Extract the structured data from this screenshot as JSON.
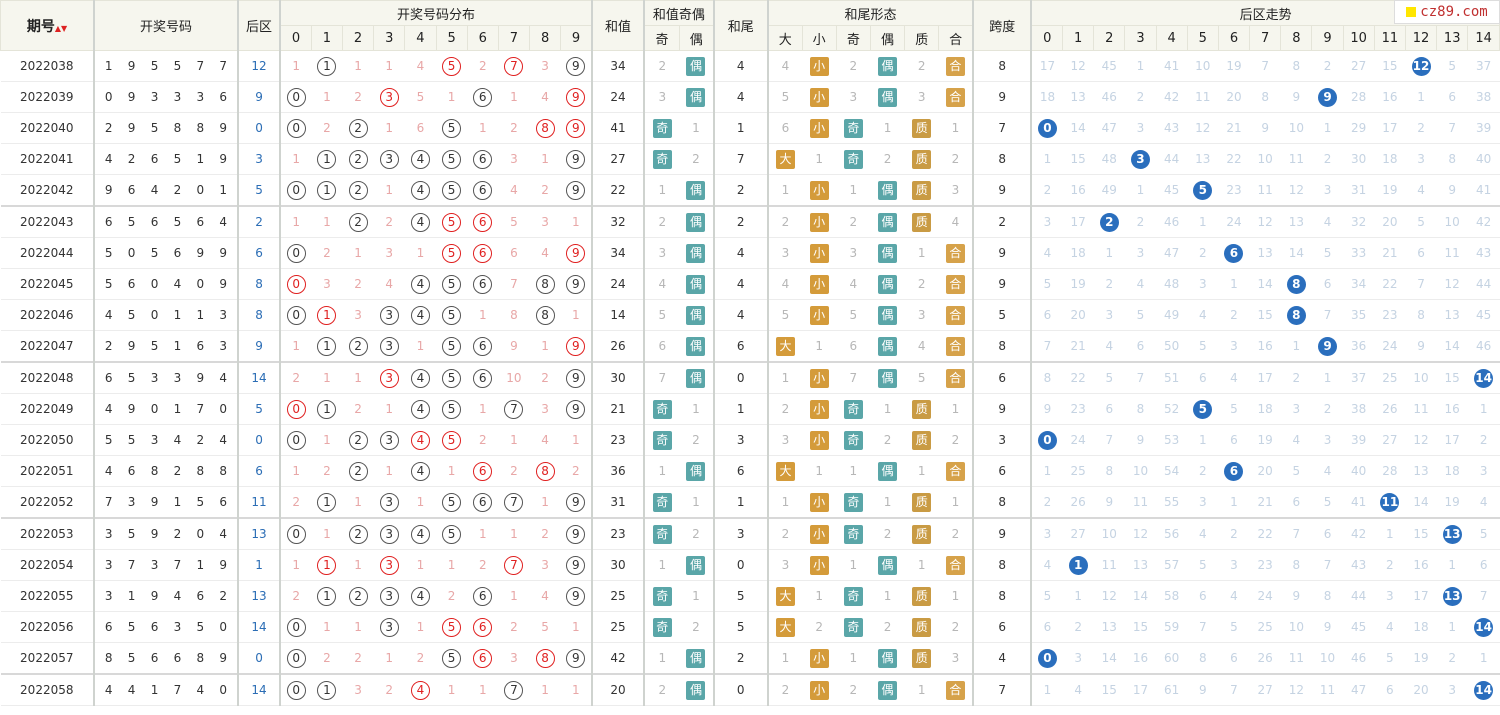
{
  "logo": {
    "text": "cz89.com"
  },
  "headers": {
    "issue": "期号",
    "open_nums": "开奖号码",
    "rear": "后区",
    "dist": "开奖号码分布",
    "dist_cols": [
      "0",
      "1",
      "2",
      "3",
      "4",
      "5",
      "6",
      "7",
      "8",
      "9"
    ],
    "sum": "和值",
    "sum_oe": "和值奇偶",
    "oe_cols": [
      "奇",
      "偶"
    ],
    "tail": "和尾",
    "tail_shape": "和尾形态",
    "shape_cols": [
      "大",
      "小",
      "奇",
      "偶",
      "质",
      "合"
    ],
    "span": "跨度",
    "rear_trend": "后区走势",
    "trend_cols": [
      "0",
      "1",
      "2",
      "3",
      "4",
      "5",
      "6",
      "7",
      "8",
      "9",
      "10",
      "11",
      "12",
      "13",
      "14"
    ]
  },
  "rows": [
    {
      "issue": "2022038",
      "nums": [
        "1",
        "9",
        "5",
        "5",
        "7",
        "7"
      ],
      "rear": "12",
      "dist": [
        "1",
        "C",
        "1",
        "1",
        "4",
        "R",
        "2",
        "R",
        "3",
        "C"
      ],
      "sum": "34",
      "oe": [
        "2",
        "偶"
      ],
      "tail": "4",
      "shape": [
        "4",
        "小",
        "2",
        "偶",
        "2",
        "合"
      ],
      "span": "8",
      "trend": [
        "17",
        "12",
        "45",
        "1",
        "41",
        "10",
        "19",
        "7",
        "8",
        "2",
        "27",
        "15",
        "B",
        "5",
        "37"
      ]
    },
    {
      "issue": "2022039",
      "nums": [
        "0",
        "9",
        "3",
        "3",
        "3",
        "6"
      ],
      "rear": "9",
      "dist": [
        "C",
        "1",
        "2",
        "R",
        "5",
        "1",
        "C",
        "1",
        "4",
        "R"
      ],
      "sum": "24",
      "oe": [
        "3",
        "偶"
      ],
      "tail": "4",
      "shape": [
        "5",
        "小",
        "3",
        "偶",
        "3",
        "合"
      ],
      "span": "9",
      "trend": [
        "18",
        "13",
        "46",
        "2",
        "42",
        "11",
        "20",
        "8",
        "9",
        "B",
        "28",
        "16",
        "1",
        "6",
        "38"
      ]
    },
    {
      "issue": "2022040",
      "nums": [
        "2",
        "9",
        "5",
        "8",
        "8",
        "9"
      ],
      "rear": "0",
      "dist": [
        "C",
        "2",
        "C",
        "1",
        "6",
        "C",
        "1",
        "2",
        "R",
        "R"
      ],
      "sum": "41",
      "oe": [
        "奇",
        "1"
      ],
      "tail": "1",
      "shape": [
        "6",
        "小",
        "奇",
        "1",
        "质",
        "1"
      ],
      "span": "7",
      "trend": [
        "B",
        "14",
        "47",
        "3",
        "43",
        "12",
        "21",
        "9",
        "10",
        "1",
        "29",
        "17",
        "2",
        "7",
        "39"
      ]
    },
    {
      "issue": "2022041",
      "nums": [
        "4",
        "2",
        "6",
        "5",
        "1",
        "9"
      ],
      "rear": "3",
      "dist": [
        "1",
        "C",
        "C",
        "C",
        "C",
        "C",
        "C",
        "3",
        "1",
        "C"
      ],
      "sum": "27",
      "oe": [
        "奇",
        "2"
      ],
      "tail": "7",
      "shape": [
        "大",
        "1",
        "奇",
        "2",
        "质",
        "2"
      ],
      "span": "8",
      "trend": [
        "1",
        "15",
        "48",
        "B",
        "44",
        "13",
        "22",
        "10",
        "11",
        "2",
        "30",
        "18",
        "3",
        "8",
        "40"
      ]
    },
    {
      "issue": "2022042",
      "nums": [
        "9",
        "6",
        "4",
        "2",
        "0",
        "1"
      ],
      "rear": "5",
      "dist": [
        "C",
        "C",
        "C",
        "1",
        "C",
        "C",
        "C",
        "4",
        "2",
        "C"
      ],
      "sum": "22",
      "oe": [
        "1",
        "偶"
      ],
      "tail": "2",
      "shape": [
        "1",
        "小",
        "1",
        "偶",
        "质",
        "3"
      ],
      "span": "9",
      "trend": [
        "2",
        "16",
        "49",
        "1",
        "45",
        "B",
        "23",
        "11",
        "12",
        "3",
        "31",
        "19",
        "4",
        "9",
        "41"
      ]
    },
    {
      "issue": "2022043",
      "nums": [
        "6",
        "5",
        "6",
        "5",
        "6",
        "4"
      ],
      "rear": "2",
      "dist": [
        "1",
        "1",
        "C",
        "2",
        "C",
        "R",
        "R",
        "5",
        "3",
        "1"
      ],
      "sum": "32",
      "oe": [
        "2",
        "偶"
      ],
      "tail": "2",
      "shape": [
        "2",
        "小",
        "2",
        "偶",
        "质",
        "4"
      ],
      "span": "2",
      "trend": [
        "3",
        "17",
        "B",
        "2",
        "46",
        "1",
        "24",
        "12",
        "13",
        "4",
        "32",
        "20",
        "5",
        "10",
        "42"
      ],
      "grp": true
    },
    {
      "issue": "2022044",
      "nums": [
        "5",
        "0",
        "5",
        "6",
        "9",
        "9"
      ],
      "rear": "6",
      "dist": [
        "C",
        "2",
        "1",
        "3",
        "1",
        "R",
        "R",
        "6",
        "4",
        "R"
      ],
      "sum": "34",
      "oe": [
        "3",
        "偶"
      ],
      "tail": "4",
      "shape": [
        "3",
        "小",
        "3",
        "偶",
        "1",
        "合"
      ],
      "span": "9",
      "trend": [
        "4",
        "18",
        "1",
        "3",
        "47",
        "2",
        "B",
        "13",
        "14",
        "5",
        "33",
        "21",
        "6",
        "11",
        "43"
      ]
    },
    {
      "issue": "2022045",
      "nums": [
        "5",
        "6",
        "0",
        "4",
        "0",
        "9"
      ],
      "rear": "8",
      "dist": [
        "R",
        "3",
        "2",
        "4",
        "C",
        "C",
        "C",
        "7",
        "C",
        "C"
      ],
      "sum": "24",
      "oe": [
        "4",
        "偶"
      ],
      "tail": "4",
      "shape": [
        "4",
        "小",
        "4",
        "偶",
        "2",
        "合"
      ],
      "span": "9",
      "trend": [
        "5",
        "19",
        "2",
        "4",
        "48",
        "3",
        "1",
        "14",
        "B",
        "6",
        "34",
        "22",
        "7",
        "12",
        "44"
      ]
    },
    {
      "issue": "2022046",
      "nums": [
        "4",
        "5",
        "0",
        "1",
        "1",
        "3"
      ],
      "rear": "8",
      "dist": [
        "C",
        "R",
        "3",
        "C",
        "C",
        "C",
        "1",
        "8",
        "C",
        "1"
      ],
      "sum": "14",
      "oe": [
        "5",
        "偶"
      ],
      "tail": "4",
      "shape": [
        "5",
        "小",
        "5",
        "偶",
        "3",
        "合"
      ],
      "span": "5",
      "trend": [
        "6",
        "20",
        "3",
        "5",
        "49",
        "4",
        "2",
        "15",
        "B",
        "7",
        "35",
        "23",
        "8",
        "13",
        "45"
      ]
    },
    {
      "issue": "2022047",
      "nums": [
        "2",
        "9",
        "5",
        "1",
        "6",
        "3"
      ],
      "rear": "9",
      "dist": [
        "1",
        "C",
        "C",
        "C",
        "1",
        "C",
        "C",
        "9",
        "1",
        "R"
      ],
      "sum": "26",
      "oe": [
        "6",
        "偶"
      ],
      "tail": "6",
      "shape": [
        "大",
        "1",
        "6",
        "偶",
        "4",
        "合"
      ],
      "span": "8",
      "trend": [
        "7",
        "21",
        "4",
        "6",
        "50",
        "5",
        "3",
        "16",
        "1",
        "B",
        "36",
        "24",
        "9",
        "14",
        "46"
      ]
    },
    {
      "issue": "2022048",
      "nums": [
        "6",
        "5",
        "3",
        "3",
        "9",
        "4"
      ],
      "rear": "14",
      "dist": [
        "2",
        "1",
        "1",
        "R",
        "C",
        "C",
        "C",
        "10",
        "2",
        "C"
      ],
      "sum": "30",
      "oe": [
        "7",
        "偶"
      ],
      "tail": "0",
      "shape": [
        "1",
        "小",
        "7",
        "偶",
        "5",
        "合"
      ],
      "span": "6",
      "trend": [
        "8",
        "22",
        "5",
        "7",
        "51",
        "6",
        "4",
        "17",
        "2",
        "1",
        "37",
        "25",
        "10",
        "15",
        "B"
      ],
      "grp": true
    },
    {
      "issue": "2022049",
      "nums": [
        "4",
        "9",
        "0",
        "1",
        "7",
        "0"
      ],
      "rear": "5",
      "dist": [
        "R",
        "C",
        "2",
        "1",
        "C",
        "C",
        "1",
        "C",
        "3",
        "C"
      ],
      "sum": "21",
      "oe": [
        "奇",
        "1"
      ],
      "tail": "1",
      "shape": [
        "2",
        "小",
        "奇",
        "1",
        "质",
        "1"
      ],
      "span": "9",
      "trend": [
        "9",
        "23",
        "6",
        "8",
        "52",
        "B",
        "5",
        "18",
        "3",
        "2",
        "38",
        "26",
        "11",
        "16",
        "1"
      ]
    },
    {
      "issue": "2022050",
      "nums": [
        "5",
        "5",
        "3",
        "4",
        "2",
        "4"
      ],
      "rear": "0",
      "dist": [
        "C",
        "1",
        "C",
        "C",
        "R",
        "R",
        "2",
        "1",
        "4",
        "1"
      ],
      "sum": "23",
      "oe": [
        "奇",
        "2"
      ],
      "tail": "3",
      "shape": [
        "3",
        "小",
        "奇",
        "2",
        "质",
        "2"
      ],
      "span": "3",
      "trend": [
        "B",
        "24",
        "7",
        "9",
        "53",
        "1",
        "6",
        "19",
        "4",
        "3",
        "39",
        "27",
        "12",
        "17",
        "2"
      ]
    },
    {
      "issue": "2022051",
      "nums": [
        "4",
        "6",
        "8",
        "2",
        "8",
        "8"
      ],
      "rear": "6",
      "dist": [
        "1",
        "2",
        "C",
        "1",
        "C",
        "1",
        "R",
        "2",
        "R",
        "2"
      ],
      "sum": "36",
      "oe": [
        "1",
        "偶"
      ],
      "tail": "6",
      "shape": [
        "大",
        "1",
        "1",
        "偶",
        "1",
        "合"
      ],
      "span": "6",
      "trend": [
        "1",
        "25",
        "8",
        "10",
        "54",
        "2",
        "B",
        "20",
        "5",
        "4",
        "40",
        "28",
        "13",
        "18",
        "3"
      ]
    },
    {
      "issue": "2022052",
      "nums": [
        "7",
        "3",
        "9",
        "1",
        "5",
        "6"
      ],
      "rear": "11",
      "dist": [
        "2",
        "C",
        "1",
        "C",
        "1",
        "C",
        "C",
        "C",
        "1",
        "C"
      ],
      "sum": "31",
      "oe": [
        "奇",
        "1"
      ],
      "tail": "1",
      "shape": [
        "1",
        "小",
        "奇",
        "1",
        "质",
        "1"
      ],
      "span": "8",
      "trend": [
        "2",
        "26",
        "9",
        "11",
        "55",
        "3",
        "1",
        "21",
        "6",
        "5",
        "41",
        "B",
        "14",
        "19",
        "4"
      ]
    },
    {
      "issue": "2022053",
      "nums": [
        "3",
        "5",
        "9",
        "2",
        "0",
        "4"
      ],
      "rear": "13",
      "dist": [
        "C",
        "1",
        "C",
        "C",
        "C",
        "C",
        "1",
        "1",
        "2",
        "C"
      ],
      "sum": "23",
      "oe": [
        "奇",
        "2"
      ],
      "tail": "3",
      "shape": [
        "2",
        "小",
        "奇",
        "2",
        "质",
        "2"
      ],
      "span": "9",
      "trend": [
        "3",
        "27",
        "10",
        "12",
        "56",
        "4",
        "2",
        "22",
        "7",
        "6",
        "42",
        "1",
        "15",
        "B",
        "5"
      ],
      "grp": true
    },
    {
      "issue": "2022054",
      "nums": [
        "3",
        "7",
        "3",
        "7",
        "1",
        "9"
      ],
      "rear": "1",
      "dist": [
        "1",
        "R",
        "1",
        "R",
        "1",
        "1",
        "2",
        "R",
        "3",
        "C"
      ],
      "sum": "30",
      "oe": [
        "1",
        "偶"
      ],
      "tail": "0",
      "shape": [
        "3",
        "小",
        "1",
        "偶",
        "1",
        "合"
      ],
      "span": "8",
      "trend": [
        "4",
        "B",
        "11",
        "13",
        "57",
        "5",
        "3",
        "23",
        "8",
        "7",
        "43",
        "2",
        "16",
        "1",
        "6"
      ]
    },
    {
      "issue": "2022055",
      "nums": [
        "3",
        "1",
        "9",
        "4",
        "6",
        "2"
      ],
      "rear": "13",
      "dist": [
        "2",
        "C",
        "C",
        "C",
        "C",
        "2",
        "C",
        "1",
        "4",
        "C"
      ],
      "sum": "25",
      "oe": [
        "奇",
        "1"
      ],
      "tail": "5",
      "shape": [
        "大",
        "1",
        "奇",
        "1",
        "质",
        "1"
      ],
      "span": "8",
      "trend": [
        "5",
        "1",
        "12",
        "14",
        "58",
        "6",
        "4",
        "24",
        "9",
        "8",
        "44",
        "3",
        "17",
        "B",
        "7"
      ]
    },
    {
      "issue": "2022056",
      "nums": [
        "6",
        "5",
        "6",
        "3",
        "5",
        "0"
      ],
      "rear": "14",
      "dist": [
        "C",
        "1",
        "1",
        "C",
        "1",
        "R",
        "R",
        "2",
        "5",
        "1"
      ],
      "sum": "25",
      "oe": [
        "奇",
        "2"
      ],
      "tail": "5",
      "shape": [
        "大",
        "2",
        "奇",
        "2",
        "质",
        "2"
      ],
      "span": "6",
      "trend": [
        "6",
        "2",
        "13",
        "15",
        "59",
        "7",
        "5",
        "25",
        "10",
        "9",
        "45",
        "4",
        "18",
        "1",
        "B"
      ]
    },
    {
      "issue": "2022057",
      "nums": [
        "8",
        "5",
        "6",
        "6",
        "8",
        "9"
      ],
      "rear": "0",
      "dist": [
        "C",
        "2",
        "2",
        "1",
        "2",
        "C",
        "R",
        "3",
        "R",
        "C"
      ],
      "sum": "42",
      "oe": [
        "1",
        "偶"
      ],
      "tail": "2",
      "shape": [
        "1",
        "小",
        "1",
        "偶",
        "质",
        "3"
      ],
      "span": "4",
      "trend": [
        "B",
        "3",
        "14",
        "16",
        "60",
        "8",
        "6",
        "26",
        "11",
        "10",
        "46",
        "5",
        "19",
        "2",
        "1"
      ]
    },
    {
      "issue": "2022058",
      "nums": [
        "4",
        "4",
        "1",
        "7",
        "4",
        "0"
      ],
      "rear": "14",
      "dist": [
        "C",
        "C",
        "3",
        "2",
        "R",
        "1",
        "1",
        "C",
        "1",
        "1"
      ],
      "sum": "20",
      "oe": [
        "2",
        "偶"
      ],
      "tail": "0",
      "shape": [
        "2",
        "小",
        "2",
        "偶",
        "1",
        "合"
      ],
      "span": "7",
      "trend": [
        "1",
        "4",
        "15",
        "17",
        "61",
        "9",
        "7",
        "27",
        "12",
        "11",
        "47",
        "6",
        "20",
        "3",
        "B"
      ],
      "grp": true
    }
  ]
}
